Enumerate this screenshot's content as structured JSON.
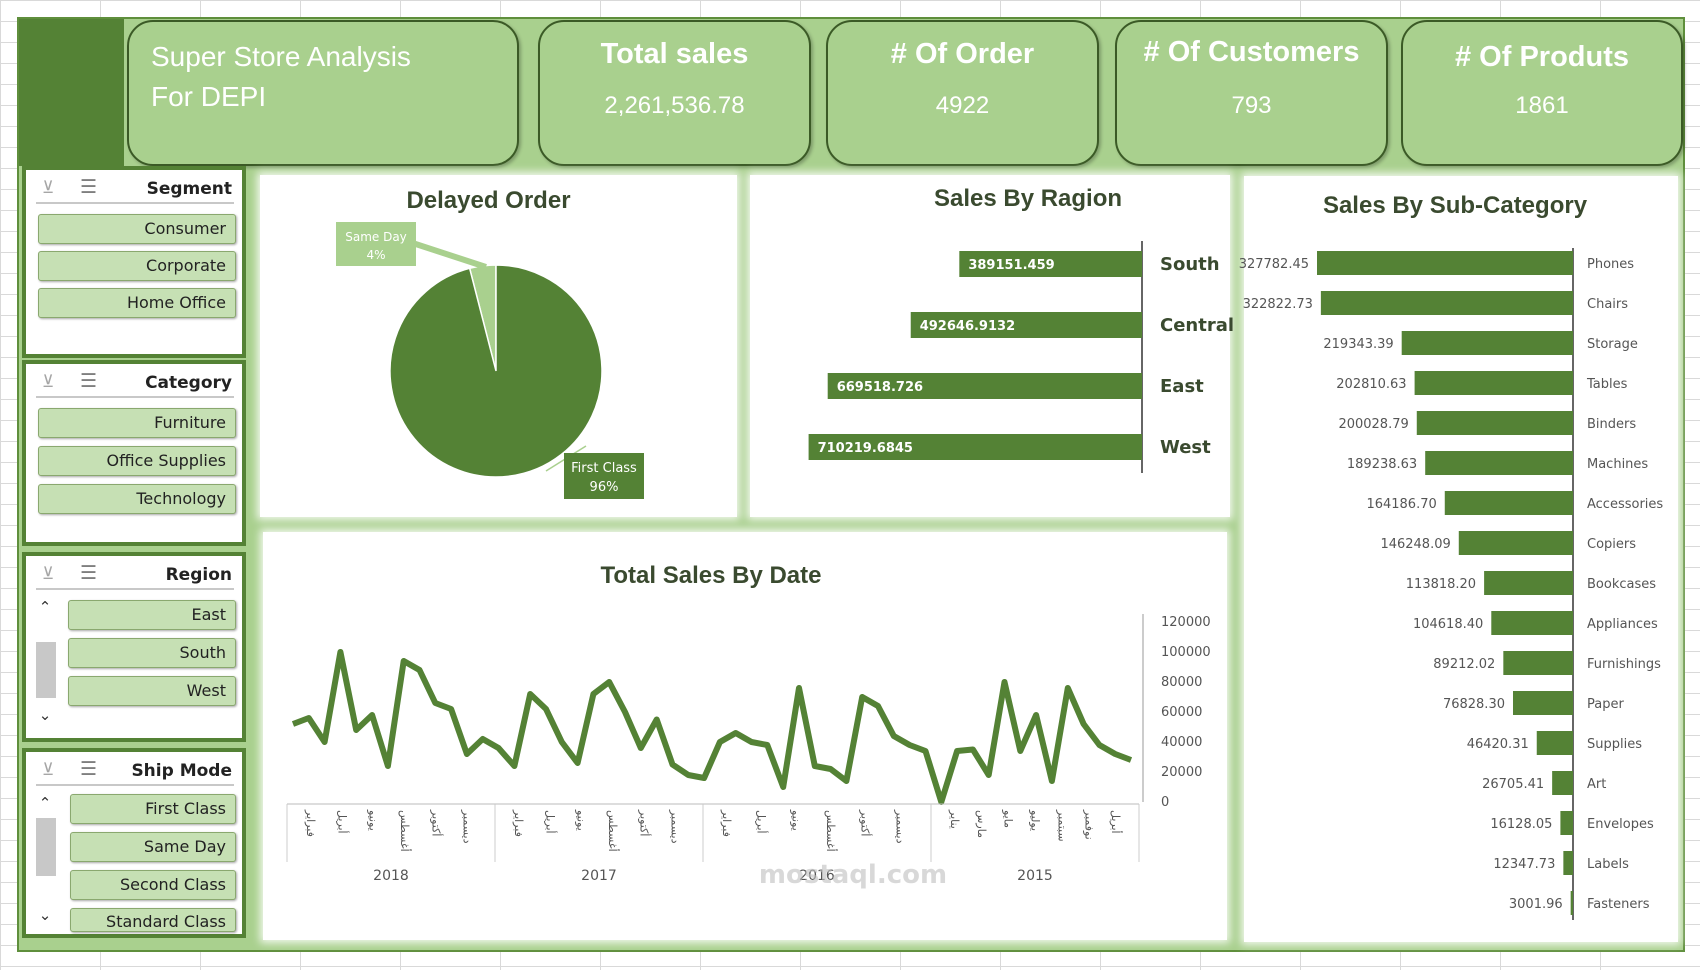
{
  "header": {
    "title_line1": "Super Store Analysis",
    "title_line2": "For DEPI",
    "kpis": [
      {
        "label": "Total sales",
        "value": "2,261,536.78"
      },
      {
        "label": "# Of Order",
        "value": "4922"
      },
      {
        "label": "# Of Customers",
        "value": "793"
      },
      {
        "label": "# Of Produts",
        "value": "1861"
      }
    ]
  },
  "slicers": {
    "segment": {
      "title": "Segment",
      "items": [
        "Consumer",
        "Corporate",
        "Home Office"
      ]
    },
    "category": {
      "title": "Category",
      "items": [
        "Furniture",
        "Office Supplies",
        "Technology"
      ]
    },
    "region": {
      "title": "Region",
      "items": [
        "East",
        "South",
        "West"
      ]
    },
    "ship_mode": {
      "title": "Ship Mode",
      "items": [
        "First Class",
        "Same Day",
        "Second Class",
        "Standard Class"
      ]
    }
  },
  "icons": {
    "clear_filter": "clear-filter-icon",
    "multi_select": "multi-select-icon",
    "scroll_up": "chevron-up-icon",
    "scroll_down": "chevron-down-icon"
  },
  "colors": {
    "dark_green": "#548235",
    "light_green": "#a9d08e",
    "pale_green": "#c6e0b4",
    "line_green": "#548235"
  },
  "watermark": "mostaql.com",
  "chart_data": [
    {
      "type": "pie",
      "title": "Delayed Order",
      "slices": [
        {
          "label": "Same Day",
          "value": 4,
          "display": "4%",
          "color": "#a9d08e"
        },
        {
          "label": "First Class",
          "value": 96,
          "display": "96%",
          "color": "#548235"
        }
      ]
    },
    {
      "type": "bar",
      "orientation": "horizontal",
      "title": "Sales By Ragion",
      "categories": [
        "South",
        "Central",
        "East",
        "West"
      ],
      "values": [
        389151.459,
        492646.9132,
        669518.726,
        710219.6845
      ],
      "labels": [
        "389151.459",
        "492646.9132",
        "669518.726",
        "710219.6845"
      ],
      "reversed_axis": true
    },
    {
      "type": "bar",
      "orientation": "horizontal",
      "title": "Sales By  Sub-Category",
      "categories": [
        "Phones",
        "Chairs",
        "Storage",
        "Tables",
        "Binders",
        "Machines",
        "Accessories",
        "Copiers",
        "Bookcases",
        "Appliances",
        "Furnishings",
        "Paper",
        "Supplies",
        "Art",
        "Envelopes",
        "Labels",
        "Fasteners"
      ],
      "values": [
        327782.45,
        322822.73,
        219343.39,
        202810.63,
        200028.79,
        189238.63,
        164186.7,
        146248.09,
        113818.2,
        104618.4,
        89212.02,
        76828.3,
        46420.31,
        26705.41,
        16128.05,
        12347.73,
        3001.96
      ],
      "labels": [
        "327782.45",
        "322822.73",
        "219343.39",
        "202810.63",
        "200028.79",
        "189238.63",
        "164186.70",
        "146248.09",
        "113818.20",
        "104618.40",
        "89212.02",
        "76828.30",
        "46420.31",
        "26705.41",
        "16128.05",
        "12347.73",
        "3001.96"
      ],
      "reversed_axis": true
    },
    {
      "type": "line",
      "title": "Total Sales By Date",
      "ylim": [
        0,
        120000
      ],
      "yticks": [
        "0",
        "20000",
        "40000",
        "60000",
        "80000",
        "100000",
        "120000"
      ],
      "years": [
        "2018",
        "2017",
        "2016",
        "2015"
      ],
      "month_labels": [
        [
          "فبراير",
          "أبريل",
          "يونيو",
          "أغسطس",
          "أكتوبر",
          "ديسمبر"
        ],
        [
          "فبراير",
          "أبريل",
          "يونيو",
          "أغسطس",
          "أكتوبر",
          "ديسمبر"
        ],
        [
          "فبراير",
          "أبريل",
          "يونيو",
          "أغسطس",
          "أكتوبر",
          "ديسمبر"
        ],
        [
          "يناير",
          "مارس",
          "مايو",
          "يوليو",
          "سبتمبر",
          "نوفمبر",
          "أبريل"
        ]
      ],
      "values": [
        52000,
        56000,
        40000,
        100000,
        48000,
        58000,
        24000,
        94000,
        88000,
        66000,
        62000,
        32000,
        42000,
        36000,
        24000,
        72000,
        62000,
        40000,
        26000,
        72000,
        80000,
        60000,
        36000,
        55000,
        25000,
        18000,
        16000,
        40000,
        46000,
        40000,
        38000,
        10000,
        76000,
        24000,
        22000,
        14000,
        70000,
        64000,
        44000,
        38000,
        34000,
        0,
        34000,
        35000,
        18000,
        80000,
        34000,
        58000,
        14000,
        76000,
        52000,
        38000,
        32000,
        28000
      ]
    }
  ]
}
